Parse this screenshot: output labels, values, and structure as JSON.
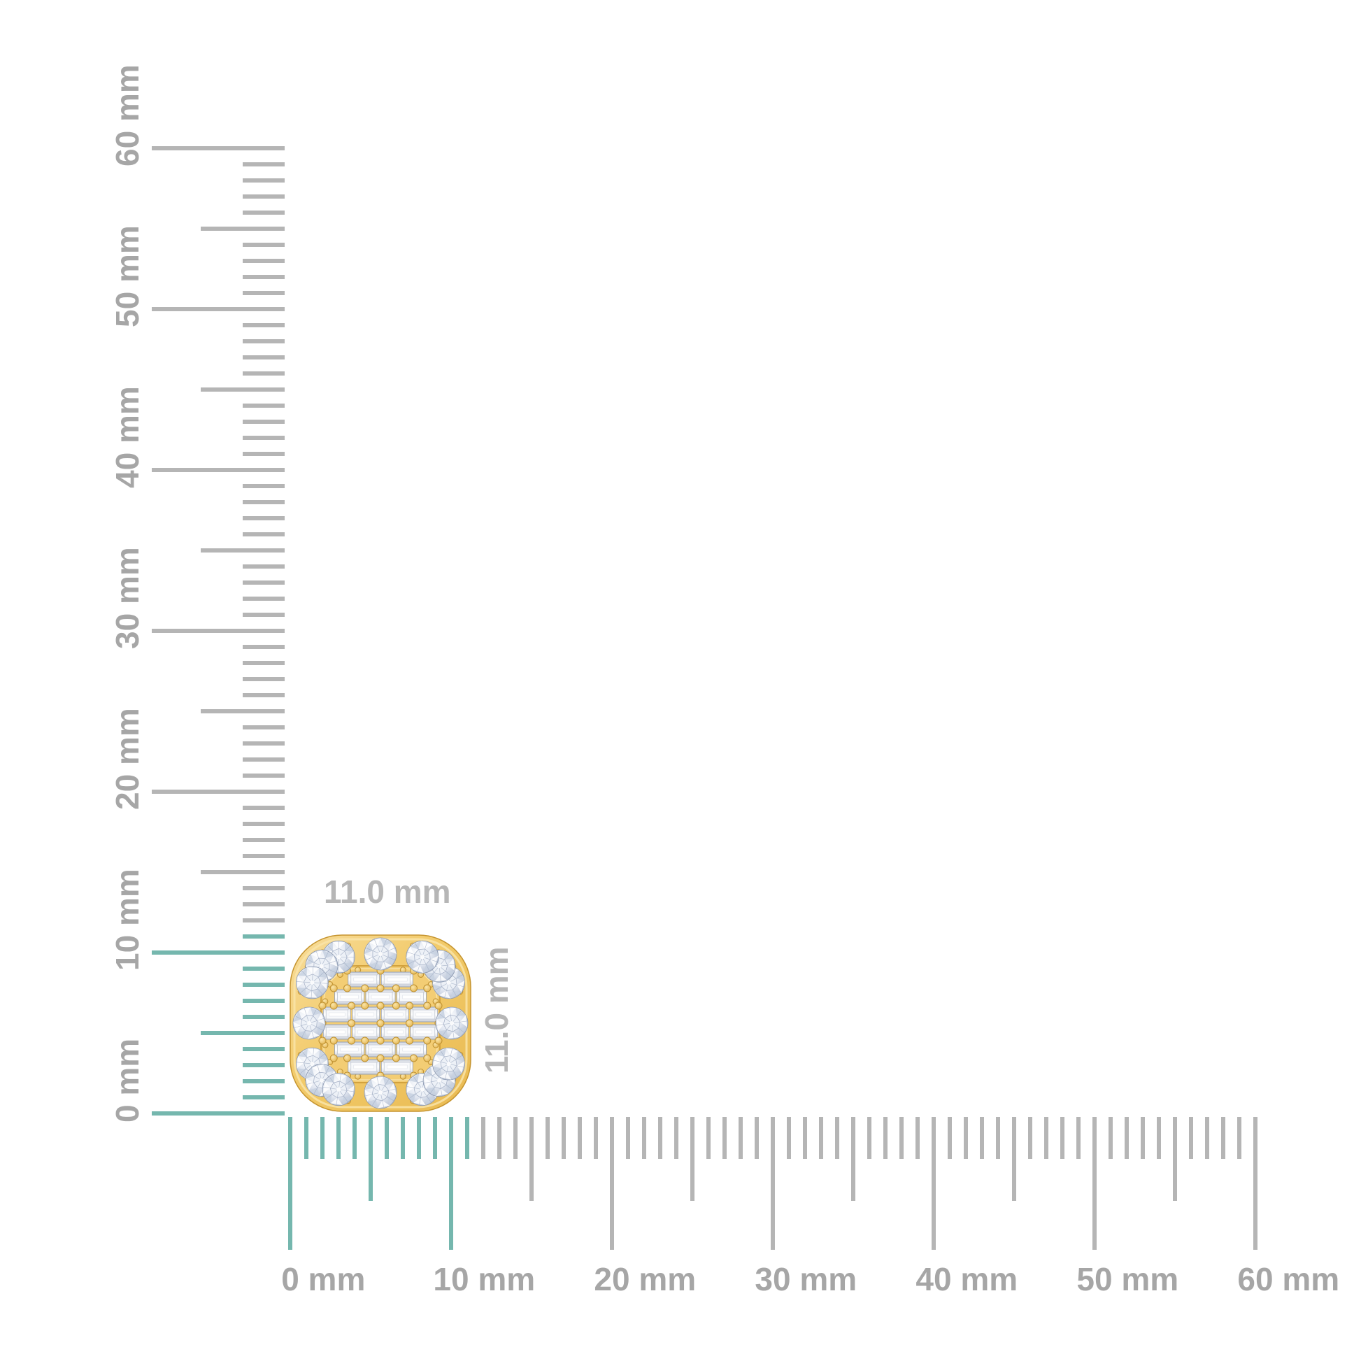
{
  "diagram": {
    "background": "#ffffff",
    "description": "Cushion-shaped yellow-gold halo diamond stud shown against millimeter rulers"
  },
  "measurement": {
    "width_label": "11.0 mm",
    "height_label": "11.0 mm"
  },
  "rulers": {
    "unit": "mm",
    "min_mm": 0,
    "max_mm": 60,
    "tick_step_mm": 1,
    "medium_tick_every_mm": 5,
    "major_tick_every_mm": 10,
    "highlighted_span_mm": 11,
    "colors": {
      "highlight_tick": "#75b7ae",
      "tick": "#b5b5b5",
      "label": "#a6a6a6",
      "dimension_label": "#b6b6b6"
    },
    "vertical_labels": [
      "0 mm",
      "10 mm",
      "20 mm",
      "30 mm",
      "40 mm",
      "50 mm",
      "60 mm"
    ],
    "horizontal_labels": [
      "0 mm",
      "10 mm",
      "20 mm",
      "30 mm",
      "40 mm",
      "50 mm",
      "60 mm"
    ]
  },
  "product": {
    "kind": "cushion-halo-diamond-stud-earring",
    "halo_round_stones": 16,
    "baguette_rows": [
      2,
      3,
      4,
      4,
      3,
      2
    ],
    "colors": {
      "gold_light": "#f8dd9b",
      "gold": "#f2ca69",
      "gold_deep": "#e9ba52",
      "gold_outline": "#c5942f",
      "gold_ridge": "#d2a23e",
      "rim_highlight": "#f9e4a8",
      "diamond_white": "#ffffff",
      "diamond_mid": "#c7d1e0",
      "diamond_deep": "#aeb9cd",
      "diamond_edge": "#8a97af"
    }
  }
}
